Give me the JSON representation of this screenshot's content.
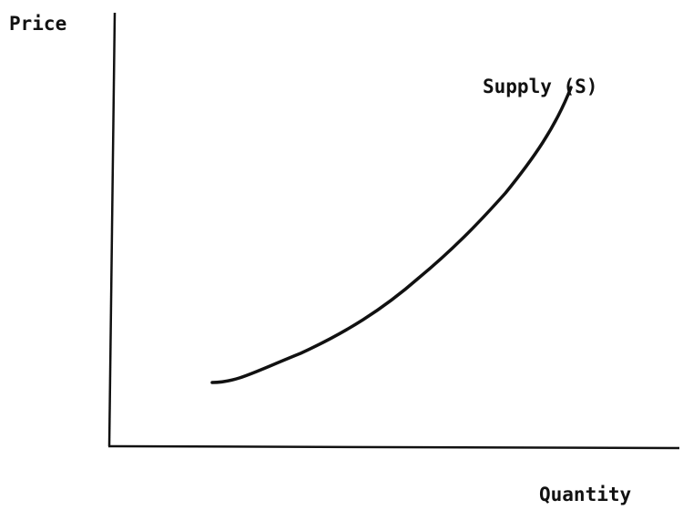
{
  "axes": {
    "y_label": "Price",
    "x_label": "Quantity"
  },
  "curves": [
    {
      "label": "Supply (S)"
    }
  ]
}
